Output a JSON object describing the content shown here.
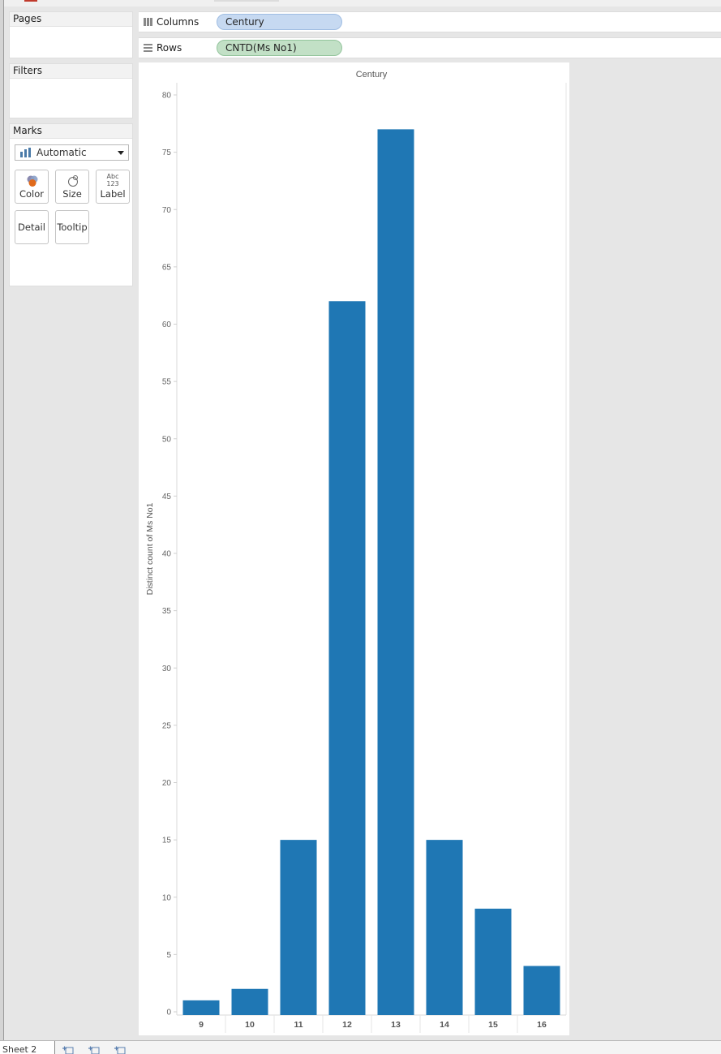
{
  "sidebar": {
    "pages_title": "Pages",
    "filters_title": "Filters",
    "marks": {
      "title": "Marks",
      "mark_type": "Automatic",
      "buttons": {
        "color": "Color",
        "size": "Size",
        "label": "Label",
        "detail": "Detail",
        "tooltip": "Tooltip"
      },
      "label_icon_text": {
        "top": "Abc",
        "bottom": "123"
      }
    }
  },
  "shelves": {
    "columns": {
      "label": "Columns",
      "pill": "Century"
    },
    "rows": {
      "label": "Rows",
      "pill": "CNTD(Ms No1)"
    }
  },
  "bottom": {
    "sheet_tab": "Sheet 2"
  },
  "colors": {
    "bar": "#1f77b4",
    "dimension_pill": "#c6d9f1",
    "measure_pill": "#c2e0c6"
  },
  "chart_data": {
    "type": "bar",
    "title": "Century",
    "xlabel": "",
    "ylabel": "Distinct count of Ms No1",
    "categories": [
      "9",
      "10",
      "11",
      "12",
      "13",
      "14",
      "15",
      "16"
    ],
    "values": [
      1,
      2,
      15,
      62,
      77,
      15,
      9,
      4
    ],
    "ylim": [
      0,
      80
    ],
    "yticks": [
      0,
      5,
      10,
      15,
      20,
      25,
      30,
      35,
      40,
      45,
      50,
      55,
      60,
      65,
      70,
      75,
      80
    ],
    "grid": false,
    "legend": "none"
  }
}
